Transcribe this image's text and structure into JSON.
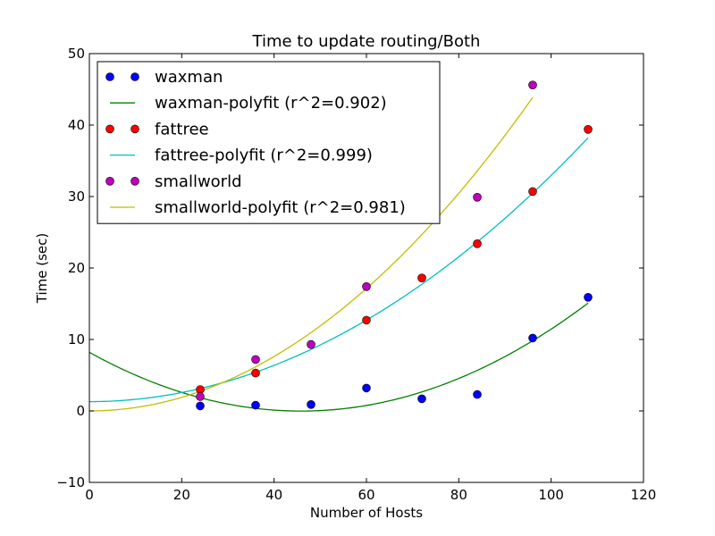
{
  "chart_data": {
    "type": "scatter",
    "title": "Time to update routing/Both",
    "xlabel": "Number of Hosts",
    "ylabel": "Time (sec)",
    "xlim": [
      0,
      120
    ],
    "ylim": [
      -10,
      50
    ],
    "xticks": [
      0,
      20,
      40,
      60,
      80,
      100,
      120
    ],
    "yticks": [
      -10,
      0,
      10,
      20,
      30,
      40,
      50
    ],
    "xtick_labels": [
      "0",
      "20",
      "40",
      "60",
      "80",
      "100",
      "120"
    ],
    "ytick_labels": [
      "−10",
      "0",
      "10",
      "20",
      "30",
      "40",
      "50"
    ],
    "grid": false,
    "legend_position": "top-left",
    "series": [
      {
        "name": "waxman",
        "kind": "points",
        "color": "#0000ff",
        "x": [
          24,
          36,
          48,
          60,
          72,
          84,
          96,
          108
        ],
        "y": [
          0.7,
          0.8,
          0.9,
          3.2,
          1.7,
          2.3,
          10.2,
          15.9
        ]
      },
      {
        "name": "waxman-polyfit (r^2=0.902)",
        "kind": "line",
        "color": "#008000",
        "coeffs": [
          0.00391,
          -0.3585,
          8.2
        ],
        "x_range": [
          0,
          108
        ]
      },
      {
        "name": "fattree",
        "kind": "points",
        "color": "#ff0000",
        "x": [
          24,
          36,
          60,
          72,
          84,
          96,
          108
        ],
        "y": [
          3.0,
          5.3,
          12.7,
          18.6,
          23.4,
          30.7,
          39.4
        ]
      },
      {
        "name": "fattree-polyfit (r^2=0.999)",
        "kind": "line",
        "color": "#00bfbf",
        "coeffs": [
          0.00316,
          0.0006,
          1.3
        ],
        "x_range": [
          0,
          108
        ]
      },
      {
        "name": "smallworld",
        "kind": "points",
        "color": "#bf00bf",
        "x": [
          24,
          36,
          48,
          60,
          84,
          96
        ],
        "y": [
          2.0,
          7.2,
          9.3,
          17.4,
          29.9,
          45.6
        ]
      },
      {
        "name": "smallworld-polyfit (r^2=0.981)",
        "kind": "line",
        "color": "#bfbf00",
        "coeffs": [
          0.00476,
          0.0,
          0.0
        ],
        "x_range": [
          0,
          96
        ]
      }
    ]
  }
}
